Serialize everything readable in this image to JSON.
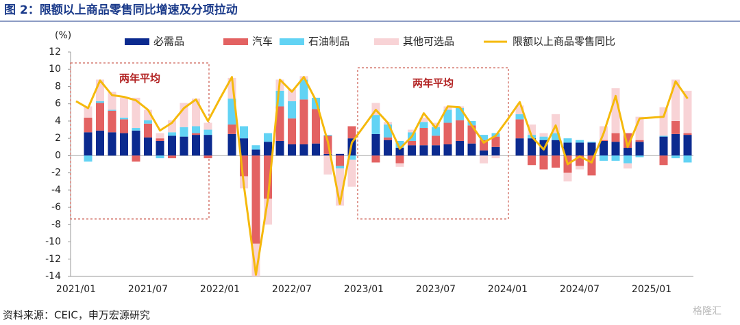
{
  "chart_data": {
    "type": "bar",
    "title": "图 2：限额以上商品零售同比增速及分项拉动",
    "y_unit": "(%)",
    "source": "资料来源：CEIC，申万宏源研究",
    "watermark": "格隆汇",
    "annotations": [
      "两年平均",
      "两年平均"
    ],
    "categories": [
      "2021/01",
      null,
      null,
      null,
      null,
      null,
      "2021/07",
      null,
      null,
      null,
      null,
      null,
      "2022/01",
      null,
      null,
      null,
      null,
      null,
      "2022/07",
      null,
      null,
      null,
      null,
      null,
      "2023/01",
      null,
      null,
      null,
      null,
      null,
      "2023/07",
      null,
      null,
      null,
      null,
      null,
      "2024/01",
      null,
      null,
      null,
      null,
      null,
      "2024/07",
      null,
      null,
      null,
      null,
      null,
      "2025/01",
      null,
      null,
      null
    ],
    "ylim": [
      -14,
      12
    ],
    "yticks": [
      12,
      10,
      8,
      6,
      4,
      2,
      0,
      -2,
      -4,
      -6,
      -8,
      -10,
      -12,
      -14
    ],
    "series": [
      {
        "name": "必需品",
        "type": "bar",
        "color": "#0b2a8f",
        "values": [
          null,
          2.7,
          2.9,
          2.7,
          2.6,
          2.9,
          2.1,
          1.7,
          2.3,
          2.2,
          2.4,
          2.4,
          null,
          2.5,
          2.0,
          0.7,
          1.6,
          1.7,
          1.3,
          1.3,
          1.4,
          0.2,
          0.2,
          2.0,
          null,
          2.5,
          1.8,
          0.9,
          1.2,
          1.2,
          1.2,
          1.3,
          1.7,
          1.4,
          0.6,
          1.0,
          null,
          2.0,
          2.0,
          1.8,
          1.8,
          1.5,
          1.5,
          1.5,
          1.7,
          1.6,
          0.9,
          1.6,
          null,
          2.2,
          2.5,
          2.4
        ]
      },
      {
        "name": "汽车",
        "type": "bar",
        "color": "#e36262",
        "values": [
          null,
          1.7,
          3.2,
          2.5,
          1.6,
          -0.7,
          1.6,
          0.3,
          -0.3,
          0,
          0.2,
          -0.3,
          null,
          1.1,
          -2.4,
          -10.2,
          -5.0,
          4.0,
          3.0,
          5.2,
          4.0,
          2.1,
          -1.2,
          1.4,
          null,
          -0.8,
          0.3,
          -0.9,
          0.5,
          2.0,
          1.1,
          2.5,
          2.4,
          2.1,
          1.2,
          1.2,
          null,
          2.2,
          -1.1,
          -1.6,
          -1.4,
          -2.0,
          -1.2,
          -2.3,
          0.1,
          1.0,
          1.7,
          0.2,
          null,
          -1.1,
          1.5,
          0.2
        ]
      },
      {
        "name": "石油制品",
        "type": "bar",
        "color": "#62d3f4",
        "values": [
          null,
          -0.7,
          0.2,
          0.1,
          0.2,
          0.3,
          0.4,
          -0.3,
          0.4,
          1.1,
          0.8,
          0.6,
          null,
          3.0,
          1.4,
          0.5,
          1.0,
          1.8,
          2.0,
          2.3,
          1.3,
          0.1,
          -0.3,
          -0.5,
          null,
          2.2,
          1.5,
          0.8,
          1.0,
          0.7,
          1.0,
          1.5,
          1.4,
          0.5,
          0.6,
          0.4,
          null,
          0.6,
          0.4,
          0.4,
          0.8,
          0.5,
          0.3,
          0.1,
          -0.6,
          -0.6,
          -0.9,
          -0.2,
          null,
          0.1,
          -0.3,
          -0.8
        ]
      },
      {
        "name": "其他可选品",
        "type": "bar",
        "color": "#f8d3d6",
        "values": [
          null,
          1.3,
          2.5,
          2.1,
          2.3,
          3.5,
          1.2,
          0.6,
          1.4,
          2.8,
          3.2,
          0.8,
          null,
          2.4,
          -1.4,
          -3.8,
          -3.0,
          1.3,
          1.4,
          0.4,
          0,
          -2.2,
          -4.3,
          -3.1,
          null,
          1.4,
          0.3,
          -0.4,
          0.3,
          0.5,
          0.5,
          0.4,
          0.2,
          0,
          -0.9,
          -0.3,
          null,
          1.0,
          1.2,
          0.4,
          2.2,
          -1.0,
          -0.4,
          0,
          1.6,
          5.2,
          -0.6,
          2.7,
          null,
          3.3,
          4.8,
          4.9
        ]
      },
      {
        "name": "限额以上商品零售同比",
        "type": "line",
        "color": "#f5b90c",
        "values": [
          6.3,
          5.5,
          8.7,
          7.0,
          6.8,
          6.4,
          5.3,
          2.9,
          3.8,
          5.5,
          6.5,
          4.0,
          6.6,
          9.1,
          -3.5,
          -13.8,
          -5.0,
          8.8,
          7.4,
          9.1,
          6.4,
          1.6,
          -5.6,
          1.5,
          3.4,
          5.3,
          3.8,
          0.8,
          2.2,
          4.9,
          3.2,
          5.7,
          5.6,
          3.5,
          1.5,
          2.3,
          4.2,
          6.2,
          2.2,
          0.7,
          3.5,
          -1.0,
          -0.1,
          -0.8,
          2.6,
          6.9,
          1.0,
          4.3,
          4.4,
          4.5,
          8.6,
          6.6
        ]
      }
    ]
  }
}
